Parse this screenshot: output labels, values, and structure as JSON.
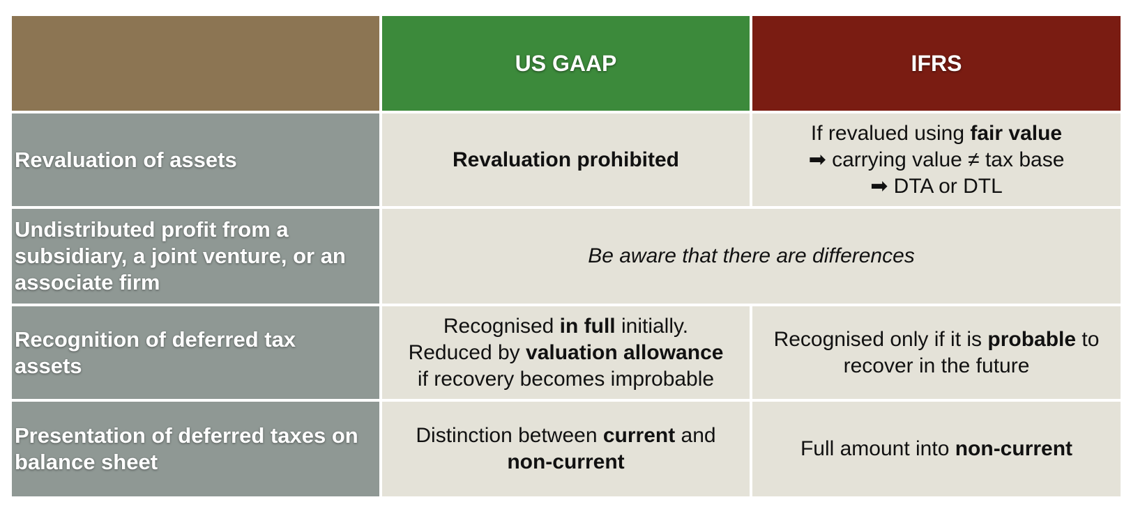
{
  "header": {
    "corner": "",
    "col_gaap": "US GAAP",
    "col_ifrs": "IFRS"
  },
  "rows": {
    "revaluation": {
      "label": "Revaluation of assets",
      "gaap": "Revaluation prohibited",
      "ifrs": {
        "l1_pre": "If revalued using ",
        "l1_bold": "fair value",
        "l2": "➡ carrying value ≠ tax base",
        "l3": "➡ DTA or DTL"
      }
    },
    "undistributed": {
      "label_l1": "Undistributed profit from a",
      "label_l2": "subsidiary, a joint venture, or an",
      "label_l3": "associate firm",
      "merged": "Be aware that there are differences"
    },
    "recognition": {
      "label_l1": "Recognition of deferred tax",
      "label_l2": "assets",
      "gaap": {
        "l1_pre": "Recognised ",
        "l1_bold": "in full",
        "l1_post": " initially.",
        "l2_pre": "Reduced by ",
        "l2_bold": "valuation allowance",
        "l3": "if recovery becomes improbable"
      },
      "ifrs": {
        "l1_pre": "Recognised only if it is ",
        "l1_bold": "probable",
        "l1_post": " to",
        "l2": "recover in the future"
      }
    },
    "presentation": {
      "label_l1": "Presentation of deferred taxes on",
      "label_l2": "balance sheet",
      "gaap": {
        "l1_pre": "Distinction between ",
        "l1_bold": "current",
        "l1_post": " and",
        "l2_bold": "non-current"
      },
      "ifrs": {
        "pre": "Full amount into ",
        "bold": "non-current"
      }
    }
  },
  "colors": {
    "corner": "#8c7553",
    "gaap_header": "#3c8a3b",
    "ifrs_header": "#7a1c12",
    "row_label": "#8f9894",
    "body": "#e4e2d8"
  }
}
